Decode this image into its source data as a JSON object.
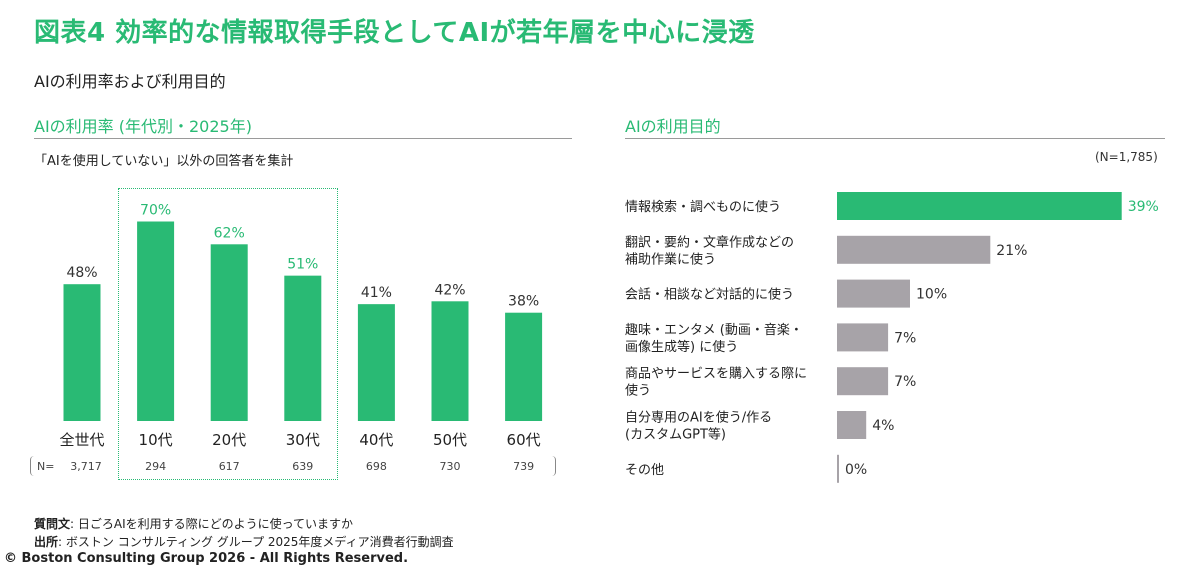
{
  "title": "図表4  効率的な情報取得手段としてAIが若年層を中心に浸透",
  "subtitle": "AIの利用率および利用目的",
  "colors": {
    "green": "#29BA74",
    "gray": "#A7A3A8"
  },
  "chart_data": [
    {
      "type": "bar",
      "title": "AIの利用率 (年代別・2025年)",
      "note": "「AIを使用していない」以外の回答者を集計",
      "categories": [
        "全世代",
        "10代",
        "20代",
        "30代",
        "40代",
        "50代",
        "60代"
      ],
      "values": [
        48,
        70,
        62,
        51,
        41,
        42,
        38
      ],
      "value_labels": [
        "48%",
        "70%",
        "62%",
        "51%",
        "41%",
        "42%",
        "38%"
      ],
      "highlighted": [
        "10代",
        "20代",
        "30代"
      ],
      "n_prefix": "N=",
      "n_values": [
        "3,717",
        "294",
        "617",
        "639",
        "698",
        "730",
        "739"
      ],
      "ylim": [
        0,
        100
      ]
    },
    {
      "type": "bar",
      "orientation": "horizontal",
      "title": "AIの利用目的",
      "n_note": "(N=1,785)",
      "categories": [
        [
          "情報検索・調べものに使う"
        ],
        [
          "翻訳・要約・文章作成などの",
          "補助作業に使う"
        ],
        [
          "会話・相談など対話的に使う"
        ],
        [
          "趣味・エンタメ (動画・音楽・",
          "画像生成等) に使う"
        ],
        [
          "商品やサービスを購入する際に",
          "使う"
        ],
        [
          "自分専用のAIを使う/作る",
          "(カスタムGPT等)"
        ],
        [
          "その他"
        ]
      ],
      "values": [
        39,
        21,
        10,
        7,
        7,
        4,
        0
      ],
      "value_labels": [
        "39%",
        "21%",
        "10%",
        "7%",
        "7%",
        "4%",
        "0%"
      ],
      "highlighted_index": 0
    }
  ],
  "footer": {
    "question_label": "質問文",
    "question_text": ": 日ごろAIを利用する際にどのように使っていますか",
    "source_label": "出所",
    "source_text": ": ボストン コンサルティング グループ 2025年度メディア消費者行動調査",
    "copyright": "© Boston Consulting Group 2026 - All Rights Reserved."
  }
}
